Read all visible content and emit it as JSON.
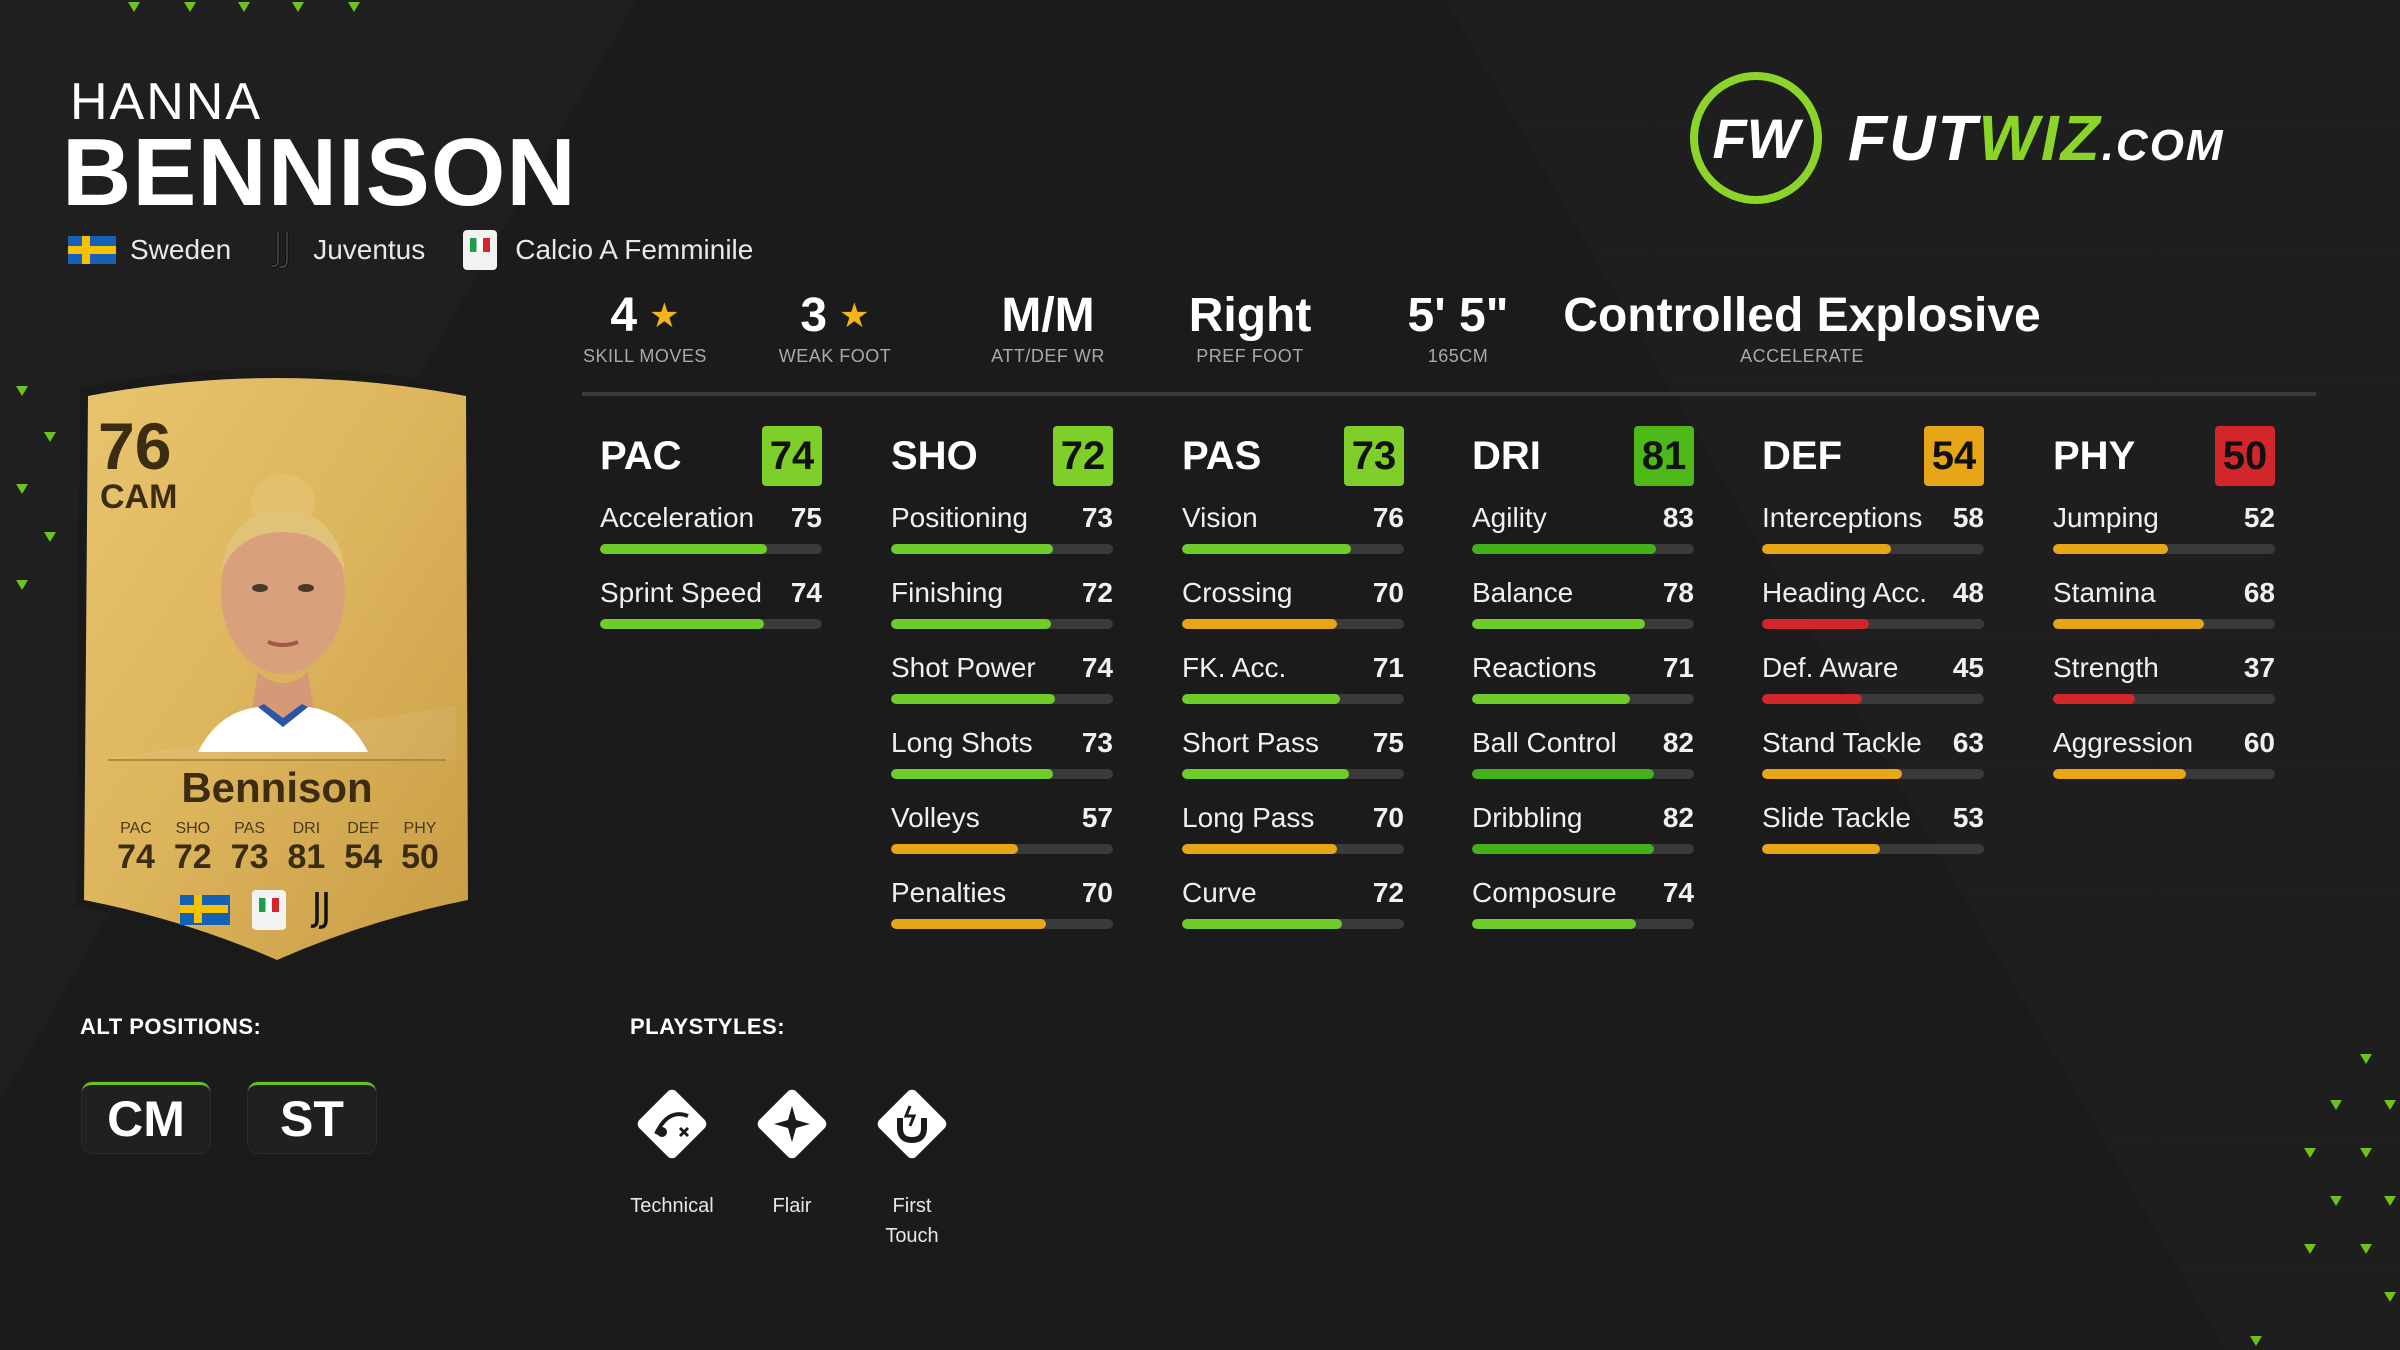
{
  "player": {
    "first_name": "HANNA",
    "last_name": "BENNISON",
    "nation": "Sweden",
    "club": "Juventus",
    "league": "Calcio A Femminile"
  },
  "logo": {
    "fw": "FW",
    "fut": "FUT",
    "wiz": "WIZ",
    "dom": ".COM"
  },
  "info": [
    {
      "value": "4",
      "star": "★",
      "label": "SKILL MOVES"
    },
    {
      "value": "3",
      "star": "★",
      "label": "WEAK FOOT"
    },
    {
      "value": "M/M",
      "label": "ATT/DEF WR"
    },
    {
      "value": "Right",
      "label": "PREF FOOT"
    },
    {
      "value": "5' 5\"",
      "label": "165CM"
    },
    {
      "value": "Controlled Explosive",
      "label": "ACCELERATE"
    }
  ],
  "stats": [
    {
      "name": "PAC",
      "value": "74",
      "color": "#7fcf2a",
      "items": [
        {
          "label": "Acceleration",
          "value": "75",
          "pct": 75,
          "color": "#6fcd2a"
        },
        {
          "label": "Sprint Speed",
          "value": "74",
          "pct": 74,
          "color": "#6fcd2a"
        }
      ]
    },
    {
      "name": "SHO",
      "value": "72",
      "color": "#7fcf2a",
      "items": [
        {
          "label": "Positioning",
          "value": "73",
          "pct": 73,
          "color": "#6fcd2a"
        },
        {
          "label": "Finishing",
          "value": "72",
          "pct": 72,
          "color": "#6fcd2a"
        },
        {
          "label": "Shot Power",
          "value": "74",
          "pct": 74,
          "color": "#6fcd2a"
        },
        {
          "label": "Long Shots",
          "value": "73",
          "pct": 73,
          "color": "#6fcd2a"
        },
        {
          "label": "Volleys",
          "value": "57",
          "pct": 57,
          "color": "#e6a617"
        },
        {
          "label": "Penalties",
          "value": "70",
          "pct": 70,
          "color": "#e6a617"
        }
      ]
    },
    {
      "name": "PAS",
      "value": "73",
      "color": "#7fcf2a",
      "items": [
        {
          "label": "Vision",
          "value": "76",
          "pct": 76,
          "color": "#6fcd2a"
        },
        {
          "label": "Crossing",
          "value": "70",
          "pct": 70,
          "color": "#e6a617"
        },
        {
          "label": "FK. Acc.",
          "value": "71",
          "pct": 71,
          "color": "#6fcd2a"
        },
        {
          "label": "Short Pass",
          "value": "75",
          "pct": 75,
          "color": "#6fcd2a"
        },
        {
          "label": "Long Pass",
          "value": "70",
          "pct": 70,
          "color": "#e6a617"
        },
        {
          "label": "Curve",
          "value": "72",
          "pct": 72,
          "color": "#6fcd2a"
        }
      ]
    },
    {
      "name": "DRI",
      "value": "81",
      "color": "#4fb819",
      "items": [
        {
          "label": "Agility",
          "value": "83",
          "pct": 83,
          "color": "#44b019"
        },
        {
          "label": "Balance",
          "value": "78",
          "pct": 78,
          "color": "#6fcd2a"
        },
        {
          "label": "Reactions",
          "value": "71",
          "pct": 71,
          "color": "#6fcd2a"
        },
        {
          "label": "Ball Control",
          "value": "82",
          "pct": 82,
          "color": "#44b019"
        },
        {
          "label": "Dribbling",
          "value": "82",
          "pct": 82,
          "color": "#44b019"
        },
        {
          "label": "Composure",
          "value": "74",
          "pct": 74,
          "color": "#6fcd2a"
        }
      ]
    },
    {
      "name": "DEF",
      "value": "54",
      "color": "#e6a617",
      "items": [
        {
          "label": "Interceptions",
          "value": "58",
          "pct": 58,
          "color": "#e6a617"
        },
        {
          "label": "Heading Acc.",
          "value": "48",
          "pct": 48,
          "color": "#d3262b"
        },
        {
          "label": "Def. Aware",
          "value": "45",
          "pct": 45,
          "color": "#d3262b"
        },
        {
          "label": "Stand Tackle",
          "value": "63",
          "pct": 63,
          "color": "#e6a617"
        },
        {
          "label": "Slide Tackle",
          "value": "53",
          "pct": 53,
          "color": "#e6a617"
        }
      ]
    },
    {
      "name": "PHY",
      "value": "50",
      "color": "#d3262b",
      "items": [
        {
          "label": "Jumping",
          "value": "52",
          "pct": 52,
          "color": "#e6a617"
        },
        {
          "label": "Stamina",
          "value": "68",
          "pct": 68,
          "color": "#e6a617"
        },
        {
          "label": "Strength",
          "value": "37",
          "pct": 37,
          "color": "#d3262b"
        },
        {
          "label": "Aggression",
          "value": "60",
          "pct": 60,
          "color": "#e6a617"
        }
      ]
    }
  ],
  "card": {
    "rating": "76",
    "position": "CAM",
    "name": "Bennison",
    "stats": [
      {
        "label": "PAC",
        "value": "74"
      },
      {
        "label": "SHO",
        "value": "72"
      },
      {
        "label": "PAS",
        "value": "73"
      },
      {
        "label": "DRI",
        "value": "81"
      },
      {
        "label": "DEF",
        "value": "54"
      },
      {
        "label": "PHY",
        "value": "50"
      }
    ]
  },
  "alt_positions": {
    "title": "ALT POSITIONS:",
    "items": [
      "CM",
      "ST"
    ]
  },
  "playstyles": {
    "title": "PLAYSTYLES:",
    "items": [
      "Technical",
      "Flair",
      "First\nTouch"
    ]
  }
}
